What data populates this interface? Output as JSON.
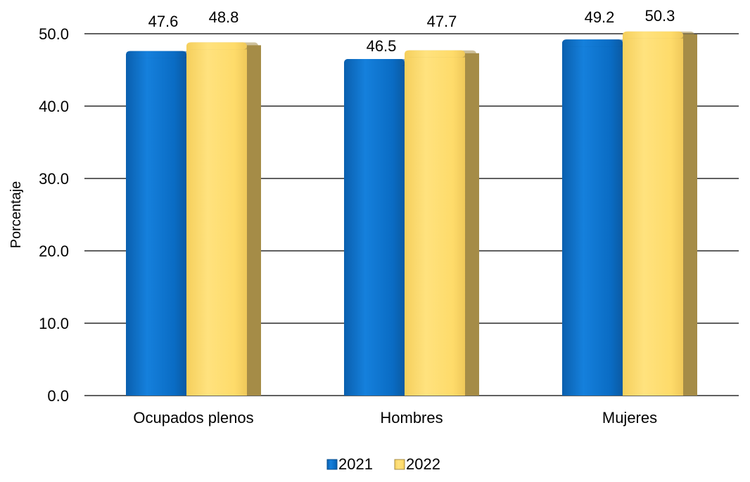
{
  "chart_data": {
    "type": "bar",
    "categories": [
      "Ocupados plenos",
      "Hombres",
      "Mujeres"
    ],
    "series": [
      {
        "name": "2021",
        "values": [
          47.6,
          46.5,
          49.2
        ],
        "color": "#0a6cc4",
        "shade": "#0a4f8f"
      },
      {
        "name": "2022",
        "values": [
          48.8,
          47.7,
          50.3
        ],
        "color": "#fedb6a",
        "shade": "#a58c47"
      }
    ],
    "title": "",
    "xlabel": "",
    "ylabel": "Porcentaje",
    "ylim": [
      0,
      50
    ],
    "yticks": [
      "0.0",
      "10.0",
      "20.0",
      "30.0",
      "40.0",
      "50.0"
    ],
    "data_labels": [
      [
        "47.6",
        "46.5",
        "49.2"
      ],
      [
        "48.8",
        "47.7",
        "50.3"
      ]
    ],
    "grid": true,
    "legend_position": "bottom"
  }
}
